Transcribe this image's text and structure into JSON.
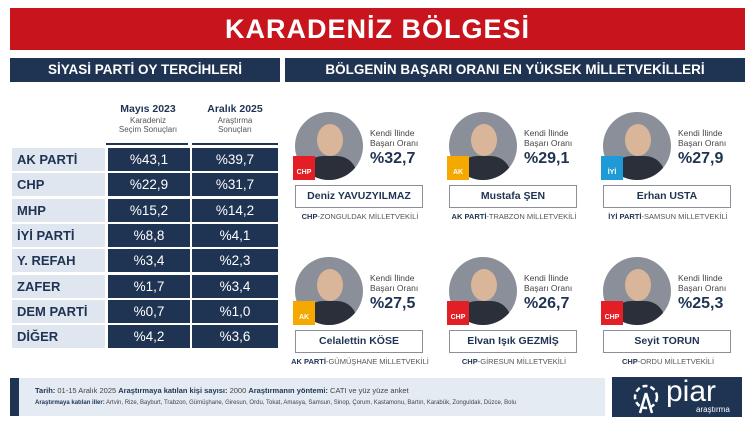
{
  "title": "KARADENİZ BÖLGESİ",
  "left_header": "SİYASİ PARTİ OY TERCİHLERİ",
  "right_header": "BÖLGENİN BAŞARI ORANI EN YÜKSEK MİLLETVEKİLLERİ",
  "columns": [
    {
      "title": "Mayıs 2023",
      "line1": "Karadeniz",
      "line2": "Seçim Sonuçları"
    },
    {
      "title": "Aralık 2025",
      "line1": "Araştırma",
      "line2": "Sonuçları"
    }
  ],
  "rows": [
    {
      "party": "AK PARTİ",
      "v2023": "%43,1",
      "v2025": "%39,7"
    },
    {
      "party": "CHP",
      "v2023": "%22,9",
      "v2025": "%31,7"
    },
    {
      "party": "MHP",
      "v2023": "%15,2",
      "v2025": "%14,2"
    },
    {
      "party": "İYİ PARTİ",
      "v2023": "%8,8",
      "v2025": "%4,1"
    },
    {
      "party": "Y. REFAH",
      "v2023": "%3,4",
      "v2025": "%2,3"
    },
    {
      "party": "ZAFER",
      "v2023": "%1,7",
      "v2025": "%3,4"
    },
    {
      "party": "DEM PARTİ",
      "v2023": "%0,7",
      "v2025": "%1,0"
    },
    {
      "party": "DİĞER",
      "v2023": "%4,2",
      "v2025": "%3,6"
    }
  ],
  "rate_label_1": "Kendi İlinde",
  "rate_label_2": "Başarı Oranı",
  "deputies": [
    {
      "name": "Deniz YAVUZYILMAZ",
      "party": "CHP",
      "province": "-ZONGULDAK MİLLETVEKİLİ",
      "rate": "%32,7",
      "badge": "CHP",
      "color": "#e31e24"
    },
    {
      "name": "Mustafa ŞEN",
      "party": "AK PARTİ",
      "province": "-TRABZON MİLLETVEKİLİ",
      "rate": "%29,1",
      "badge": "AK",
      "color": "#f5a800"
    },
    {
      "name": "Erhan USTA",
      "party": "İYİ PARTİ",
      "province": "-SAMSUN MİLLETVEKİLİ",
      "rate": "%27,9",
      "badge": "İYİ",
      "color": "#1e9ad6"
    },
    {
      "name": "Celalettin KÖSE",
      "party": "AK PARTİ",
      "province": "-GÜMÜŞHANE MİLLETVEKİLİ",
      "rate": "%27,5",
      "badge": "AK",
      "color": "#f5a800"
    },
    {
      "name": "Elvan Işık GEZMİŞ",
      "party": "CHP",
      "province": "-GİRESUN MİLLETVEKİLİ",
      "rate": "%26,7",
      "badge": "CHP",
      "color": "#e31e24"
    },
    {
      "name": "Seyit TORUN",
      "party": "CHP",
      "province": "-ORDU MİLLETVEKİLİ",
      "rate": "%25,3",
      "badge": "CHP",
      "color": "#e31e24"
    }
  ],
  "footer": {
    "date_label": "Tarih:",
    "date": " 01-15 Aralık 2025 ",
    "sample_label": "Araştırmaya katılan kişi sayısı:",
    "sample": " 2000 ",
    "method_label": "Araştırmanın yöntemi:",
    "method": " CATI ve yüz yüze anket",
    "provinces_label": "Araştırmaya katılan iller:",
    "provinces": " Artvin, Rize, Bayburt, Trabzon, Gümüşhane, Giresun, Ordu, Tokat, Amasya, Samsun, Sinop, Çorum, Kastamonu, Bartın, Karabük, Zonguldak, Düzce, Bolu"
  },
  "logo": {
    "name": "piar",
    "sub": "araştırma"
  }
}
